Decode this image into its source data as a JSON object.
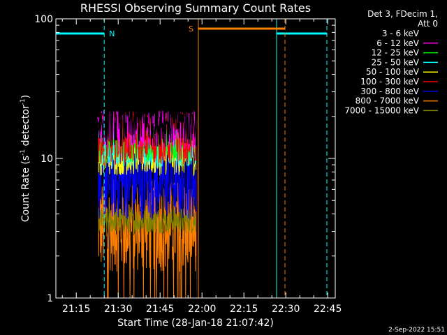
{
  "chart_data": {
    "type": "line",
    "title": "RHESSI Observing Summary Count Rates",
    "xlabel": "Start Time (28-Jan-18 21:07:42)",
    "ylabel": "Count Rate (s",
    "ylabel_sup1": "-1",
    "ylabel_mid": " detector",
    "ylabel_sup2": "-1",
    "ylabel_end": ")",
    "yscale": "log",
    "ylim": [
      1,
      100
    ],
    "xlim_minutes": [
      0,
      100
    ],
    "x_ticks": [
      {
        "label": "21:15",
        "min": 7.3
      },
      {
        "label": "21:30",
        "min": 22.3
      },
      {
        "label": "21:45",
        "min": 37.3
      },
      {
        "label": "22:00",
        "min": 52.3
      },
      {
        "label": "22:15",
        "min": 67.3
      },
      {
        "label": "22:30",
        "min": 82.3
      },
      {
        "label": "22:45",
        "min": 97.3
      }
    ],
    "y_ticks": [
      {
        "label": "1",
        "value": 1
      },
      {
        "label": "10",
        "value": 10
      },
      {
        "label": "100",
        "value": 100
      }
    ],
    "legend_header": [
      "Det 3, FDecim 1,",
      "Att 0"
    ],
    "series": [
      {
        "name": "3 - 6 keV",
        "color": "#000000",
        "base": 18,
        "noise": 0.18
      },
      {
        "name": "6 - 12 keV",
        "color": "#ff00ff",
        "base": 16,
        "noise": 0.15
      },
      {
        "name": "12 - 25 keV",
        "color": "#00ff00",
        "base": 13,
        "noise": 0.15
      },
      {
        "name": "25 - 50 keV",
        "color": "#00ffff",
        "base": 12,
        "noise": 0.15
      },
      {
        "name": "50 - 100 keV",
        "color": "#ffff00",
        "base": 10.5,
        "noise": 0.15
      },
      {
        "name": "100 - 300 keV",
        "color": "#ff0000",
        "base": 14,
        "noise": 0.2
      },
      {
        "name": "300 - 800 keV",
        "color": "#0000ff",
        "base": 7,
        "noise": 0.3
      },
      {
        "name": "800 - 7000 keV",
        "color": "#ff8000",
        "base": 3.3,
        "noise": 0.35
      },
      {
        "name": "7000 - 15000 keV",
        "color": "#808000",
        "base": 3.6,
        "noise": 0.1
      }
    ],
    "data_interval_minutes": [
      15,
      50.5
    ],
    "night_intervals": [
      {
        "label": "N",
        "start_min": 0,
        "end_min": 17.3,
        "color": "#00ffff"
      },
      {
        "label": "",
        "start_min": 79,
        "end_min": 97,
        "color": "#00ffff"
      }
    ],
    "saa_intervals": [
      {
        "label": "S",
        "start_min": 51,
        "end_min": 82,
        "color": "#ff8000"
      }
    ],
    "timestamp": "2-Sep-2022 15:51"
  }
}
